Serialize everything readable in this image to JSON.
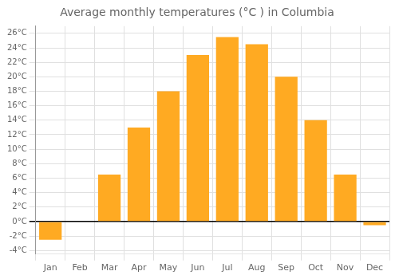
{
  "chart_data": {
    "type": "bar",
    "title": "Average monthly temperatures (°C ) in Columbia",
    "categories": [
      "Jan",
      "Feb",
      "Mar",
      "Apr",
      "May",
      "Jun",
      "Jul",
      "Aug",
      "Sep",
      "Oct",
      "Nov",
      "Dec"
    ],
    "values": [
      -2.5,
      0.0,
      6.5,
      13.0,
      18.0,
      23.0,
      25.5,
      24.5,
      20.0,
      14.0,
      6.5,
      -0.5
    ],
    "color": "#FFAA22",
    "ylim": [
      -4.5,
      27
    ],
    "yticks": [
      {
        "value": -4,
        "label": "-4°C"
      },
      {
        "value": -2,
        "label": "-2°C"
      },
      {
        "value": 0,
        "label": "0°C"
      },
      {
        "value": 2,
        "label": "2°C"
      },
      {
        "value": 4,
        "label": "4°C"
      },
      {
        "value": 6,
        "label": "6°C"
      },
      {
        "value": 8,
        "label": "8°C"
      },
      {
        "value": 10,
        "label": "10°C"
      },
      {
        "value": 12,
        "label": "12°C"
      },
      {
        "value": 14,
        "label": "14°C"
      },
      {
        "value": 16,
        "label": "16°C"
      },
      {
        "value": 18,
        "label": "18°C"
      },
      {
        "value": 20,
        "label": "20°C"
      },
      {
        "value": 22,
        "label": "22°C"
      },
      {
        "value": 24,
        "label": "24°C"
      },
      {
        "value": 26,
        "label": "26°C"
      }
    ],
    "grid": true
  }
}
